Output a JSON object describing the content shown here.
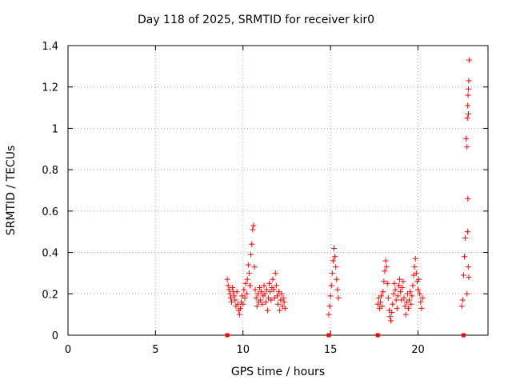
{
  "chart_data": {
    "type": "scatter",
    "title": "Day 118 of 2025, SRMTID for receiver kir0",
    "xlabel": "GPS time / hours",
    "ylabel": "SRMTID / TECUs",
    "xlim": [
      0,
      24
    ],
    "ylim": [
      0,
      1.4
    ],
    "xticks": [
      "0",
      "5",
      "10",
      "15",
      "20"
    ],
    "yticks": [
      "0",
      "0.2",
      "0.4",
      "0.6",
      "0.8",
      "1",
      "1.2",
      "1.4"
    ],
    "grid": true,
    "marker": "+",
    "color": "#ff0000",
    "series": [
      {
        "points": [
          [
            9.1,
            0.27
          ],
          [
            9.15,
            0.24
          ],
          [
            9.2,
            0.22
          ],
          [
            9.25,
            0.2
          ],
          [
            9.3,
            0.18
          ],
          [
            9.35,
            0.16
          ],
          [
            9.4,
            0.23
          ],
          [
            9.45,
            0.21
          ],
          [
            9.5,
            0.19
          ],
          [
            9.55,
            0.17
          ],
          [
            9.6,
            0.14
          ],
          [
            9.65,
            0.21
          ],
          [
            9.7,
            0.15
          ],
          [
            9.75,
            0.12
          ],
          [
            9.8,
            0.1
          ],
          [
            9.85,
            0.13
          ],
          [
            9.9,
            0.16
          ],
          [
            9.95,
            0.19
          ],
          [
            10.0,
            0.15
          ],
          [
            10.05,
            0.22
          ],
          [
            10.1,
            0.18
          ],
          [
            10.15,
            0.25
          ],
          [
            10.2,
            0.2
          ],
          [
            10.25,
            0.27
          ],
          [
            10.3,
            0.34
          ],
          [
            10.35,
            0.3
          ],
          [
            10.4,
            0.24
          ],
          [
            10.45,
            0.39
          ],
          [
            10.5,
            0.44
          ],
          [
            10.55,
            0.51
          ],
          [
            10.6,
            0.53
          ],
          [
            10.65,
            0.33
          ],
          [
            10.7,
            0.22
          ],
          [
            10.75,
            0.18
          ],
          [
            10.8,
            0.14
          ],
          [
            10.85,
            0.2
          ],
          [
            10.9,
            0.16
          ],
          [
            10.95,
            0.23
          ],
          [
            11.0,
            0.17
          ],
          [
            11.05,
            0.21
          ],
          [
            11.1,
            0.15
          ],
          [
            11.15,
            0.19
          ],
          [
            11.2,
            0.24
          ],
          [
            11.25,
            0.2
          ],
          [
            11.3,
            0.16
          ],
          [
            11.35,
            0.22
          ],
          [
            11.4,
            0.12
          ],
          [
            11.45,
            0.18
          ],
          [
            11.5,
            0.25
          ],
          [
            11.55,
            0.21
          ],
          [
            11.6,
            0.17
          ],
          [
            11.65,
            0.23
          ],
          [
            11.7,
            0.27
          ],
          [
            11.75,
            0.22
          ],
          [
            11.8,
            0.18
          ],
          [
            11.85,
            0.3
          ],
          [
            11.9,
            0.24
          ],
          [
            11.95,
            0.19
          ],
          [
            12.0,
            0.15
          ],
          [
            12.05,
            0.21
          ],
          [
            12.1,
            0.12
          ],
          [
            12.15,
            0.17
          ],
          [
            12.2,
            0.2
          ],
          [
            12.25,
            0.14
          ],
          [
            12.3,
            0.18
          ],
          [
            12.35,
            0.16
          ],
          [
            12.4,
            0.13
          ],
          [
            14.9,
            0.1
          ],
          [
            14.95,
            0.14
          ],
          [
            15.0,
            0.19
          ],
          [
            15.05,
            0.24
          ],
          [
            15.1,
            0.3
          ],
          [
            15.15,
            0.36
          ],
          [
            15.2,
            0.42
          ],
          [
            15.25,
            0.38
          ],
          [
            15.3,
            0.33
          ],
          [
            15.35,
            0.27
          ],
          [
            15.4,
            0.22
          ],
          [
            15.45,
            0.18
          ],
          [
            17.7,
            0.15
          ],
          [
            17.75,
            0.18
          ],
          [
            17.8,
            0.13
          ],
          [
            17.85,
            0.16
          ],
          [
            17.9,
            0.19
          ],
          [
            17.95,
            0.14
          ],
          [
            18.0,
            0.21
          ],
          [
            18.05,
            0.26
          ],
          [
            18.1,
            0.31
          ],
          [
            18.15,
            0.36
          ],
          [
            18.2,
            0.33
          ],
          [
            18.25,
            0.25
          ],
          [
            18.3,
            0.18
          ],
          [
            18.35,
            0.12
          ],
          [
            18.4,
            0.09
          ],
          [
            18.45,
            0.07
          ],
          [
            18.5,
            0.11
          ],
          [
            18.55,
            0.15
          ],
          [
            18.6,
            0.2
          ],
          [
            18.65,
            0.25
          ],
          [
            18.7,
            0.22
          ],
          [
            18.75,
            0.17
          ],
          [
            18.8,
            0.13
          ],
          [
            18.85,
            0.19
          ],
          [
            18.9,
            0.24
          ],
          [
            18.95,
            0.27
          ],
          [
            19.0,
            0.21
          ],
          [
            19.05,
            0.17
          ],
          [
            19.1,
            0.23
          ],
          [
            19.15,
            0.26
          ],
          [
            19.2,
            0.18
          ],
          [
            19.25,
            0.14
          ],
          [
            19.3,
            0.1
          ],
          [
            19.35,
            0.16
          ],
          [
            19.4,
            0.2
          ],
          [
            19.45,
            0.13
          ],
          [
            19.5,
            0.17
          ],
          [
            19.55,
            0.21
          ],
          [
            19.6,
            0.15
          ],
          [
            19.65,
            0.19
          ],
          [
            19.7,
            0.24
          ],
          [
            19.75,
            0.29
          ],
          [
            19.8,
            0.33
          ],
          [
            19.85,
            0.37
          ],
          [
            19.9,
            0.3
          ],
          [
            19.95,
            0.26
          ],
          [
            20.0,
            0.22
          ],
          [
            20.05,
            0.27
          ],
          [
            20.1,
            0.2
          ],
          [
            20.15,
            0.16
          ],
          [
            20.2,
            0.13
          ],
          [
            20.25,
            0.18
          ],
          [
            22.5,
            0.14
          ],
          [
            22.55,
            0.17
          ],
          [
            22.6,
            0.29
          ],
          [
            22.65,
            0.38
          ],
          [
            22.7,
            0.47
          ],
          [
            22.75,
            0.95
          ],
          [
            22.8,
            0.91
          ],
          [
            22.82,
            1.05
          ],
          [
            22.84,
            1.11
          ],
          [
            22.86,
            1.16
          ],
          [
            22.88,
            1.19
          ],
          [
            22.9,
            1.23
          ],
          [
            22.92,
            1.33
          ],
          [
            22.88,
            1.07
          ],
          [
            22.85,
            0.66
          ],
          [
            22.83,
            0.5
          ],
          [
            22.87,
            0.33
          ],
          [
            22.8,
            0.2
          ],
          [
            22.9,
            0.28
          ]
        ]
      }
    ],
    "zero_markers_x": [
      9.1,
      14.9,
      17.7,
      22.6
    ]
  }
}
